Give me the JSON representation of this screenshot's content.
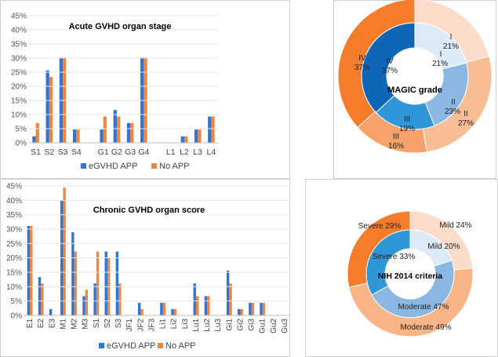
{
  "chart_data": [
    {
      "id": "acute",
      "type": "bar",
      "title": "Acute GVHD organ stage",
      "categories": [
        "S1",
        "S2",
        "S3",
        "S4",
        "",
        "G1",
        "G2",
        "G3",
        "G4",
        "",
        "L1",
        "L2",
        "L3",
        "L4"
      ],
      "series": [
        {
          "name": "eGVHD APP",
          "color": "#2e75d6",
          "values": [
            2.3,
            25.6,
            30.2,
            4.7,
            null,
            4.7,
            11.6,
            7.0,
            30.2,
            null,
            0,
            2.3,
            4.7,
            9.3
          ]
        },
        {
          "name": "No APP",
          "color": "#f4843a",
          "values": [
            7.0,
            23.3,
            30.2,
            4.7,
            null,
            9.3,
            9.3,
            7.0,
            30.2,
            null,
            0,
            2.3,
            4.7,
            9.3
          ]
        }
      ],
      "yticks": [
        "0%",
        "5%",
        "10%",
        "15%",
        "20%",
        "25%",
        "30%",
        "35%",
        "40%",
        "45%"
      ],
      "ylim": [
        0,
        45
      ],
      "legend": "bottom"
    },
    {
      "id": "chronic",
      "type": "bar",
      "title": "Chronic GVHD organ score",
      "categories": [
        "E1",
        "E2",
        "E3",
        "M1",
        "M2",
        "M3",
        "S1",
        "S2",
        "S3",
        "JF1",
        "JF2",
        "JF3",
        "Li1",
        "Li2",
        "Li3",
        "Lu1",
        "Lu2",
        "Lu3",
        "Gi1",
        "Gi2",
        "Gi3",
        "Gu1",
        "Gu2",
        "Gu3"
      ],
      "series": [
        {
          "name": "eGVHD APP",
          "color": "#2e75d6",
          "values": [
            31.1,
            13.3,
            2.2,
            40.0,
            28.9,
            6.7,
            11.1,
            22.2,
            22.2,
            0,
            4.4,
            0,
            4.4,
            2.2,
            0,
            11.1,
            6.7,
            0,
            15.6,
            2.2,
            4.4,
            4.4,
            0,
            0
          ]
        },
        {
          "name": "No APP",
          "color": "#f4843a",
          "values": [
            31.1,
            11.1,
            0,
            44.4,
            22.2,
            8.9,
            22.2,
            20.0,
            11.1,
            0,
            2.2,
            0,
            4.4,
            2.2,
            0,
            6.7,
            6.7,
            0,
            11.1,
            2.2,
            4.4,
            4.4,
            0,
            0
          ]
        }
      ],
      "yticks": [
        "0%",
        "5%",
        "10%",
        "15%",
        "20%",
        "25%",
        "30%",
        "35%",
        "40%",
        "45%"
      ],
      "ylim": [
        0,
        45
      ],
      "legend": "bottom"
    },
    {
      "id": "magic",
      "type": "pie",
      "title": "MAGIC grade",
      "outer": {
        "name": "No APP",
        "slices": [
          {
            "grade": "I",
            "pct": "21%",
            "value": 21,
            "color": "#fbdccb"
          },
          {
            "grade": "II",
            "pct": "27%",
            "value": 27,
            "color": "#f9bd96"
          },
          {
            "grade": "III",
            "pct": "16%",
            "value": 16,
            "color": "#f7a26a"
          },
          {
            "grade": "IV",
            "pct": "37%",
            "value": 37,
            "color": "#f47c2a"
          }
        ]
      },
      "inner": {
        "name": "eGVHD APP",
        "slices": [
          {
            "grade": "I",
            "pct": "21%",
            "value": 21,
            "color": "#dce9f7"
          },
          {
            "grade": "II",
            "pct": "23%",
            "value": 23,
            "color": "#8ab8e3"
          },
          {
            "grade": "III",
            "pct": "19%",
            "value": 19,
            "color": "#2f96d8"
          },
          {
            "grade": "IV",
            "pct": "37%",
            "value": 37,
            "color": "#0f65b6"
          }
        ]
      }
    },
    {
      "id": "nih",
      "type": "pie",
      "title": "NIH 2014 criteria",
      "outer": {
        "name": "No APP",
        "slices": [
          {
            "label": "Mild 24%",
            "value": 24,
            "color": "#fbdccb"
          },
          {
            "label": "Moderate 49%",
            "value": 49,
            "color": "#f9b487"
          },
          {
            "label": "Severe 29%",
            "value": 29,
            "color": "#f47c2a"
          }
        ]
      },
      "inner": {
        "name": "eGVHD APP",
        "slices": [
          {
            "label": "Mild  20%",
            "value": 20,
            "color": "#dce9f7"
          },
          {
            "label": "Moderate 47%",
            "value": 47,
            "color": "#8ab8e3"
          },
          {
            "label": "Severe 33%",
            "value": 33,
            "color": "#2f96d8"
          }
        ]
      }
    }
  ]
}
